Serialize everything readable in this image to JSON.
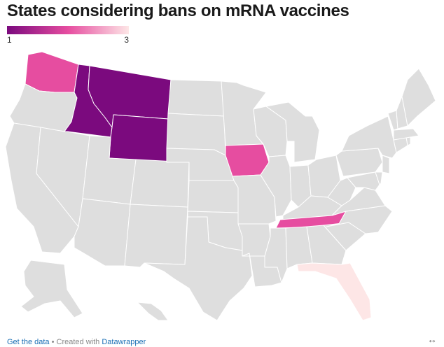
{
  "title": "States considering bans on mRNA vaccines",
  "legend": {
    "min_label": "1",
    "max_label": "3",
    "low_color": "#7b0a7e",
    "mid_color": "#e64da0",
    "high_color": "#fde6e6"
  },
  "default_color": "#dedede",
  "states": [
    {
      "name": "Washington",
      "value": 2
    },
    {
      "name": "Oregon"
    },
    {
      "name": "California"
    },
    {
      "name": "Idaho",
      "value": 1
    },
    {
      "name": "Nevada"
    },
    {
      "name": "Montana",
      "value": 1
    },
    {
      "name": "Wyoming",
      "value": 1
    },
    {
      "name": "Utah"
    },
    {
      "name": "Arizona"
    },
    {
      "name": "Colorado"
    },
    {
      "name": "New Mexico"
    },
    {
      "name": "North Dakota"
    },
    {
      "name": "South Dakota"
    },
    {
      "name": "Nebraska"
    },
    {
      "name": "Kansas"
    },
    {
      "name": "Oklahoma"
    },
    {
      "name": "Texas"
    },
    {
      "name": "Minnesota"
    },
    {
      "name": "Iowa",
      "value": 2
    },
    {
      "name": "Missouri"
    },
    {
      "name": "Arkansas"
    },
    {
      "name": "Louisiana"
    },
    {
      "name": "Wisconsin"
    },
    {
      "name": "Illinois"
    },
    {
      "name": "Michigan"
    },
    {
      "name": "Indiana"
    },
    {
      "name": "Ohio"
    },
    {
      "name": "Kentucky"
    },
    {
      "name": "Tennessee",
      "value": 2
    },
    {
      "name": "Mississippi"
    },
    {
      "name": "Alabama"
    },
    {
      "name": "Georgia"
    },
    {
      "name": "Florida",
      "value": 3
    },
    {
      "name": "South Carolina"
    },
    {
      "name": "North Carolina"
    },
    {
      "name": "Virginia"
    },
    {
      "name": "West Virginia"
    },
    {
      "name": "Pennsylvania"
    },
    {
      "name": "New York"
    },
    {
      "name": "Maryland"
    },
    {
      "name": "Delaware"
    },
    {
      "name": "New Jersey"
    },
    {
      "name": "Connecticut"
    },
    {
      "name": "Rhode Island"
    },
    {
      "name": "Massachusetts"
    },
    {
      "name": "Vermont"
    },
    {
      "name": "New Hampshire"
    },
    {
      "name": "Maine"
    },
    {
      "name": "Alaska"
    },
    {
      "name": "Hawaii"
    }
  ],
  "footer": {
    "get_data_label": "Get the data",
    "separator": " • ",
    "created_with_label": "Created with ",
    "tool_label": "Datawrapper",
    "expand_icon": "↔"
  }
}
